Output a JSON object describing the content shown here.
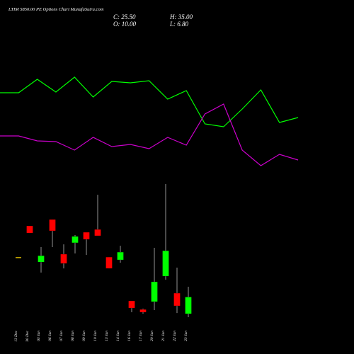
{
  "chart_data": [
    {
      "type": "line",
      "title": "LTIM 5850.00 PE Options Chart MunafaSutra.com",
      "x": [
        0,
        1,
        2,
        3,
        4,
        5,
        6,
        7,
        8,
        9,
        10,
        11,
        12,
        13,
        14,
        15,
        16
      ],
      "xlim": [
        0,
        19
      ],
      "ylim": [
        0,
        200
      ],
      "series": [
        {
          "color": "#00ff00",
          "values": [
            119,
            119,
            138,
            120,
            141,
            113,
            135,
            133,
            136,
            110,
            122,
            75,
            71,
            96,
            123,
            77,
            84
          ]
        },
        {
          "color": "#cc00cc",
          "values": [
            58,
            58,
            51,
            50,
            38,
            56,
            43,
            46,
            40,
            56,
            45,
            89,
            103,
            38,
            16,
            32,
            24
          ]
        }
      ]
    },
    {
      "type": "candlestick",
      "annotations": [
        "C: 25.50",
        "H: 35.00",
        "O: 10.00",
        "L: 6.80"
      ],
      "categories": [
        "13 Dec",
        "30 Dec",
        "03 Jan",
        "06 Jan",
        "07 Jan",
        "08 Jan",
        "09 Jan",
        "10 Jan",
        "13 Jan",
        "14 Jan",
        "16 Jan",
        "17 Jan",
        "20 Jan",
        "21 Jan",
        "22 Jan",
        "23 Jan"
      ],
      "ylim": [
        0,
        140
      ],
      "up_color": "#00ff00",
      "down_color": "#ff0000",
      "open": [
        62,
        91.4,
        57.9,
        97.3,
        65.2,
        75.7,
        85.5,
        88.1,
        62.5,
        59.9,
        21.9,
        14.0,
        21.2,
        44.8,
        29.1,
        10
      ],
      "high": [
        62,
        91.4,
        71.7,
        97.3,
        74.3,
        82.9,
        85.5,
        120.2,
        62.5,
        73.0,
        21.9,
        14.8,
        71.1,
        130.1,
        52.7,
        35
      ],
      "low": [
        62,
        84.8,
        48.1,
        71.7,
        52.0,
        65.8,
        64.5,
        82.2,
        52.0,
        57.3,
        11.4,
        10.1,
        13.4,
        41.6,
        10.7,
        6.8
      ],
      "close": [
        62,
        84.8,
        63.8,
        86.8,
        56.6,
        81.6,
        78.9,
        82.2,
        52.0,
        67.1,
        15.3,
        11.4,
        39.6,
        68.4,
        17.3,
        25.5
      ]
    }
  ]
}
